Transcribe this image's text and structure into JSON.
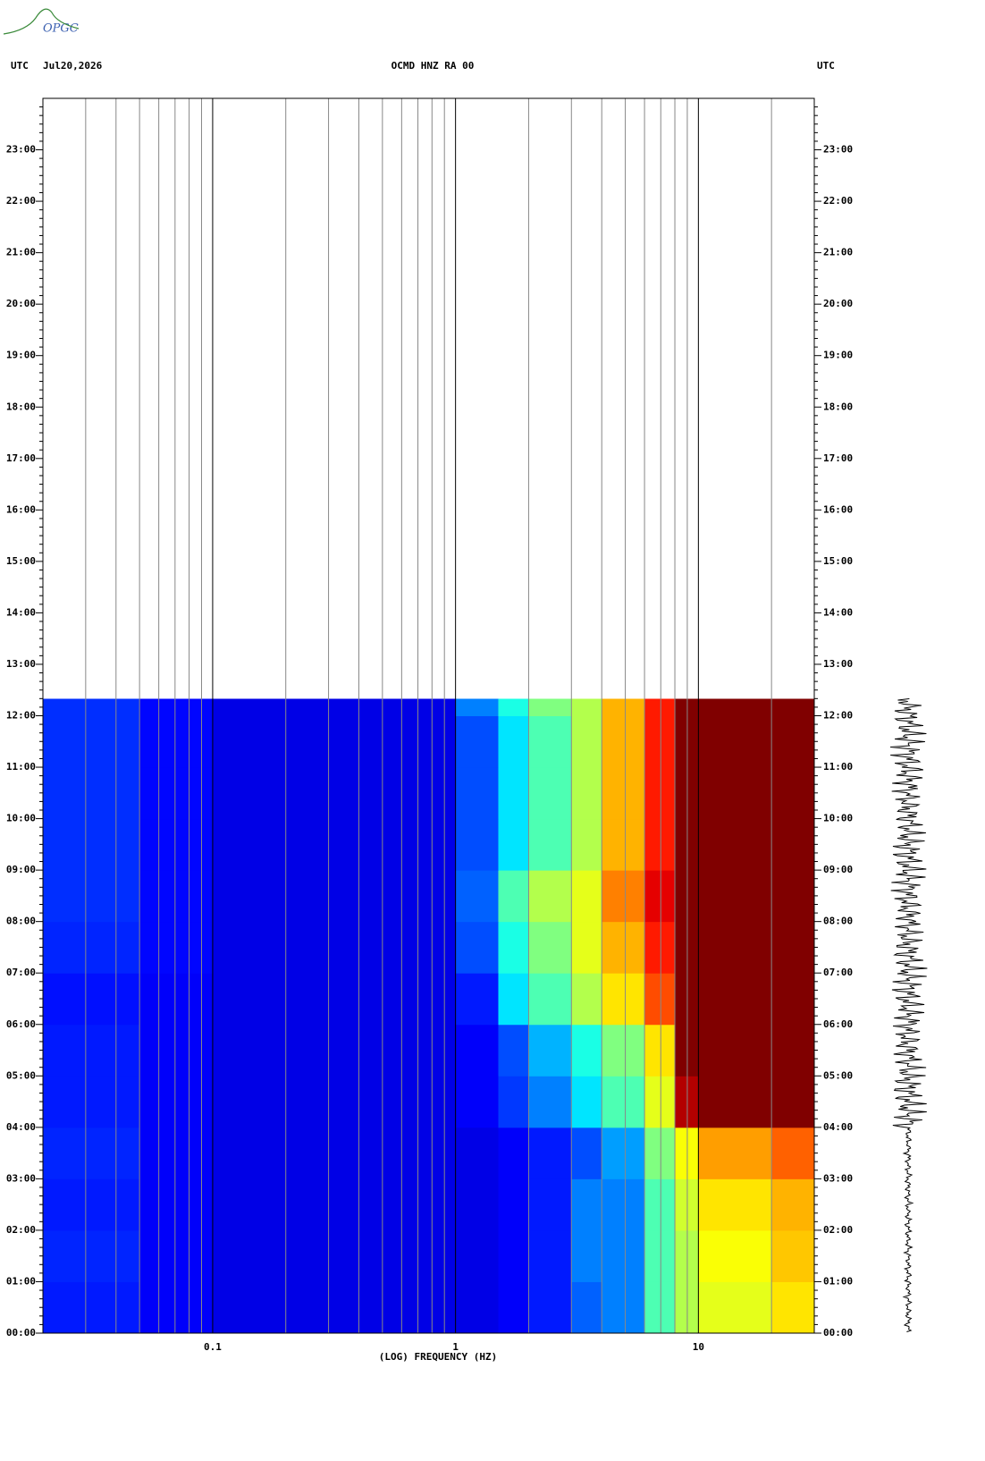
{
  "logo": "OPGC",
  "chart_data": {
    "type": "spectrogram",
    "header_left": "UTC",
    "date": "Jul20,2026",
    "title": "OCMD HNZ RA 00",
    "header_right": "UTC",
    "xlabel": "(LOG) FREQUENCY (HZ)",
    "xscale": "log",
    "xlim": [
      0.02,
      30
    ],
    "xticks": [
      0.1,
      1,
      10
    ],
    "xgrid": [
      0.03,
      0.04,
      0.05,
      0.06,
      0.07,
      0.08,
      0.09,
      0.1,
      0.2,
      0.3,
      0.4,
      0.5,
      0.6,
      0.7,
      0.8,
      0.9,
      1,
      2,
      3,
      4,
      5,
      6,
      7,
      8,
      9,
      10,
      20
    ],
    "ylim": [
      0,
      24
    ],
    "yticks": [
      {
        "value": 0,
        "label": "00:00"
      },
      {
        "value": 1,
        "label": "01:00"
      },
      {
        "value": 2,
        "label": "02:00"
      },
      {
        "value": 3,
        "label": "03:00"
      },
      {
        "value": 4,
        "label": "04:00"
      },
      {
        "value": 5,
        "label": "05:00"
      },
      {
        "value": 6,
        "label": "06:00"
      },
      {
        "value": 7,
        "label": "07:00"
      },
      {
        "value": 8,
        "label": "08:00"
      },
      {
        "value": 9,
        "label": "09:00"
      },
      {
        "value": 10,
        "label": "10:00"
      },
      {
        "value": 11,
        "label": "11:00"
      },
      {
        "value": 12,
        "label": "12:00"
      },
      {
        "value": 13,
        "label": "13:00"
      },
      {
        "value": 14,
        "label": "14:00"
      },
      {
        "value": 15,
        "label": "15:00"
      },
      {
        "value": 16,
        "label": "16:00"
      },
      {
        "value": 17,
        "label": "17:00"
      },
      {
        "value": 18,
        "label": "18:00"
      },
      {
        "value": 19,
        "label": "19:00"
      },
      {
        "value": 20,
        "label": "20:00"
      },
      {
        "value": 21,
        "label": "21:00"
      },
      {
        "value": 22,
        "label": "22:00"
      },
      {
        "value": 23,
        "label": "23:00"
      }
    ],
    "freq_edges": [
      0.02,
      0.05,
      0.1,
      0.3,
      1,
      1.5,
      2,
      3,
      4,
      6,
      8,
      10,
      20,
      30
    ],
    "time_edges": [
      0,
      1,
      2,
      3,
      4,
      5,
      6,
      7,
      8,
      9,
      10,
      11,
      12,
      12.33
    ],
    "values": [
      [
        0.15,
        0.12,
        0.1,
        0.1,
        0.1,
        0.12,
        0.15,
        0.22,
        0.25,
        0.45,
        0.55,
        0.6,
        0.65
      ],
      [
        0.16,
        0.12,
        0.1,
        0.1,
        0.1,
        0.12,
        0.15,
        0.25,
        0.25,
        0.45,
        0.55,
        0.62,
        0.68
      ],
      [
        0.15,
        0.12,
        0.1,
        0.1,
        0.1,
        0.12,
        0.15,
        0.25,
        0.25,
        0.45,
        0.58,
        0.65,
        0.7
      ],
      [
        0.16,
        0.12,
        0.1,
        0.1,
        0.1,
        0.12,
        0.15,
        0.2,
        0.28,
        0.5,
        0.62,
        0.72,
        0.78
      ],
      [
        0.15,
        0.12,
        0.1,
        0.1,
        0.12,
        0.18,
        0.25,
        0.35,
        0.45,
        0.6,
        0.95,
        1,
        1
      ],
      [
        0.15,
        0.12,
        0.1,
        0.1,
        0.12,
        0.2,
        0.3,
        0.4,
        0.5,
        0.65,
        1,
        1,
        1
      ],
      [
        0.14,
        0.12,
        0.1,
        0.1,
        0.15,
        0.35,
        0.45,
        0.55,
        0.65,
        0.8,
        1,
        1,
        1
      ],
      [
        0.16,
        0.13,
        0.1,
        0.1,
        0.2,
        0.4,
        0.5,
        0.6,
        0.7,
        0.85,
        1,
        1,
        1
      ],
      [
        0.17,
        0.13,
        0.1,
        0.1,
        0.22,
        0.45,
        0.55,
        0.6,
        0.75,
        0.9,
        1,
        1,
        1
      ],
      [
        0.17,
        0.13,
        0.1,
        0.1,
        0.2,
        0.35,
        0.45,
        0.55,
        0.7,
        0.85,
        1,
        1,
        1
      ],
      [
        0.17,
        0.13,
        0.1,
        0.1,
        0.2,
        0.35,
        0.45,
        0.55,
        0.7,
        0.85,
        1,
        1,
        1
      ],
      [
        0.17,
        0.13,
        0.1,
        0.1,
        0.2,
        0.35,
        0.45,
        0.55,
        0.7,
        0.85,
        1,
        1,
        1
      ],
      [
        0.17,
        0.13,
        0.1,
        0.1,
        0.25,
        0.4,
        0.5,
        0.55,
        0.7,
        0.85,
        1,
        1,
        1
      ]
    ]
  }
}
